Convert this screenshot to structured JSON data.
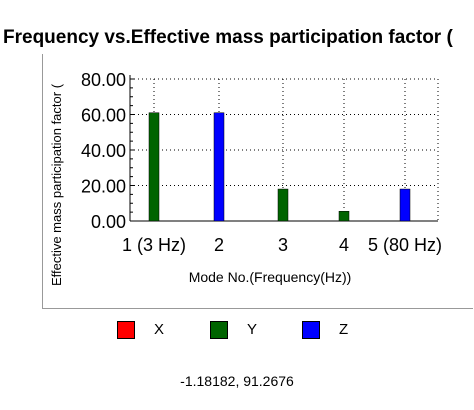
{
  "chart_data": {
    "type": "bar",
    "title": "Frequency vs.Effective mass participation factor (",
    "xlabel": "Mode No.(Frequency(Hz))",
    "ylabel": "Effective mass participation factor (",
    "categories": [
      "1 (3 Hz)",
      "2",
      "3",
      "4",
      "5 (80 Hz)"
    ],
    "ylim": [
      0,
      80
    ],
    "yticks": [
      "0.00",
      "20.00",
      "40.00",
      "60.00",
      "80.00"
    ],
    "grid": true,
    "legend_position": "bottom",
    "series": [
      {
        "name": "X",
        "color": "#ff0000",
        "values": [
          0,
          0,
          0,
          0,
          0
        ]
      },
      {
        "name": "Y",
        "color": "#006400",
        "values": [
          61,
          0,
          18,
          5.5,
          0
        ]
      },
      {
        "name": "Z",
        "color": "#0000ff",
        "values": [
          0,
          61,
          0,
          0,
          18
        ]
      }
    ]
  },
  "status": {
    "cursor_readout": "-1.18182, 91.2676"
  }
}
